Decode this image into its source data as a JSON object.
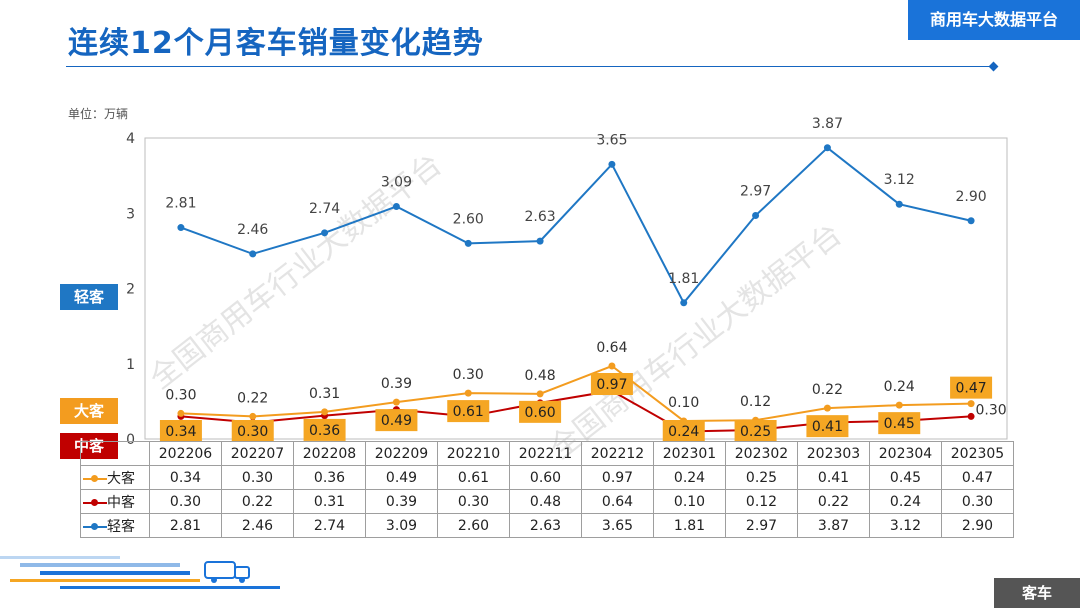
{
  "header": {
    "title": "连续12个月客车销量变化趋势",
    "brand": "商用车大数据平台"
  },
  "unit_label": "单位：万辆",
  "footer_tag": "客车",
  "watermark": "全国商用车行业大数据平台",
  "side_tags": {
    "light": "轻客",
    "large": "大客",
    "medium": "中客"
  },
  "colors": {
    "light": "#1f77c4",
    "large": "#f39c1f",
    "medium": "#c00000",
    "large_label_bg": "#f5a623"
  },
  "chart_data": {
    "type": "line",
    "categories": [
      "202206",
      "202207",
      "202208",
      "202209",
      "202210",
      "202211",
      "202212",
      "202301",
      "202302",
      "202303",
      "202304",
      "202305"
    ],
    "ylim": [
      0,
      4
    ],
    "yticks": [
      "0",
      "1",
      "2",
      "3",
      "4"
    ],
    "series": [
      {
        "name": "大客",
        "key": "large",
        "values": [
          0.34,
          0.3,
          0.36,
          0.49,
          0.61,
          0.6,
          0.97,
          0.24,
          0.25,
          0.41,
          0.45,
          0.47
        ],
        "labels": [
          "0.34",
          "0.30",
          "0.36",
          "0.49",
          "0.61",
          "0.60",
          "0.97",
          "0.24",
          "0.25",
          "0.41",
          "0.45",
          "0.47"
        ]
      },
      {
        "name": "中客",
        "key": "medium",
        "values": [
          0.3,
          0.22,
          0.31,
          0.39,
          0.3,
          0.48,
          0.64,
          0.1,
          0.12,
          0.22,
          0.24,
          0.3
        ],
        "labels": [
          "0.30",
          "0.22",
          "0.31",
          "0.39",
          "0.30",
          "0.48",
          "0.64",
          "0.10",
          "0.12",
          "0.22",
          "0.24",
          "0.30"
        ]
      },
      {
        "name": "轻客",
        "key": "light",
        "values": [
          2.81,
          2.46,
          2.74,
          3.09,
          2.6,
          2.63,
          3.65,
          1.81,
          2.97,
          3.87,
          3.12,
          2.9
        ],
        "labels": [
          "2.81",
          "2.46",
          "2.74",
          "3.09",
          "2.60",
          "2.63",
          "3.65",
          "1.81",
          "2.97",
          "3.87",
          "3.12",
          "2.90"
        ]
      }
    ]
  }
}
